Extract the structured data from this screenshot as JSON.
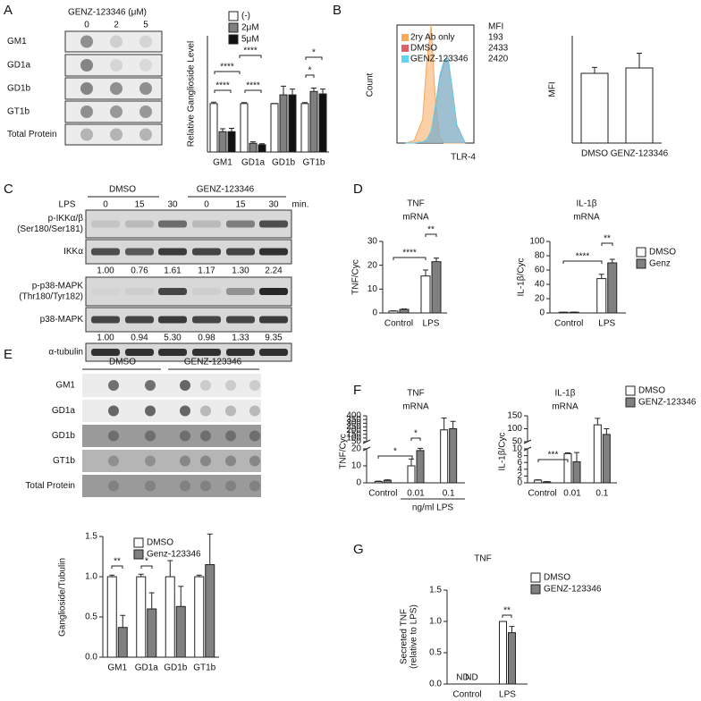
{
  "panel_labels": [
    "A",
    "B",
    "C",
    "D",
    "E",
    "F",
    "G"
  ],
  "blot_a": {
    "title": "GENZ-123346 (μM)",
    "columns": [
      "0",
      "2",
      "5"
    ],
    "rows": [
      "GM1",
      "GD1a",
      "GD1b",
      "GT1b",
      "Total Protein"
    ]
  },
  "blot_c": {
    "treatment_label": "LPS",
    "groups": [
      "DMSO",
      "GENZ-123346"
    ],
    "lanes": [
      "0",
      "15",
      "30",
      "0",
      "15",
      "30"
    ],
    "unit": "min.",
    "rows": [
      [
        "p-IKKα/β",
        "(Ser180/Ser181)"
      ],
      [
        "IKKα"
      ],
      [
        "p-p38-MAPK",
        "(Thr180/Tyr182)"
      ],
      [
        "p38-MAPK"
      ],
      [
        "α-tubulin"
      ]
    ],
    "quant": [
      [
        "1.00",
        "0.76",
        "1.61",
        "1.17",
        "1.30",
        "2.24"
      ],
      [
        "1.00",
        "0.94",
        "5.30",
        "0.98",
        "1.33",
        "9.35"
      ]
    ]
  },
  "blot_e": {
    "groups": [
      "DMSO",
      "GENZ-123346"
    ],
    "rows": [
      "GM1",
      "GD1a",
      "GD1b",
      "GT1b",
      "Total Protein"
    ]
  },
  "chart_data": [
    {
      "type": "bar",
      "ylabel": "Relative Ganglioside Level",
      "categories": [
        "GM1",
        "GD1a",
        "GD1b",
        "GT1b"
      ],
      "ylim": [
        0,
        2.4
      ],
      "series": [
        {
          "name": "(-)",
          "color": "#ffffff",
          "values": [
            1,
            1,
            1,
            1
          ],
          "errors": [
            0.03,
            0.02,
            0,
            0.02
          ]
        },
        {
          "name": "2μM",
          "color": "#808080",
          "values": [
            0.42,
            0.18,
            1.18,
            1.25
          ],
          "errors": [
            0.06,
            0.03,
            0.18,
            0.07
          ]
        },
        {
          "name": "5μM",
          "color": "#111111",
          "values": [
            0.42,
            0.15,
            1.18,
            1.2
          ],
          "errors": [
            0.07,
            0.02,
            0.12,
            0.1
          ]
        }
      ],
      "annotations": [
        "****",
        "****",
        "****",
        "****",
        "*",
        "*"
      ]
    },
    {
      "type": "area",
      "xlabel": "TLR-4",
      "ylabel": "Count",
      "mfi_label": "MFI",
      "xlim": [
        1,
        5.5
      ],
      "ylim": [
        0,
        100
      ],
      "x": [
        1.5,
        2,
        2.5,
        2.75,
        3,
        3.25,
        3.5,
        3.75,
        4,
        4.25,
        4.5,
        5
      ],
      "series": [
        {
          "name": "2ry Ab only",
          "color": "#f7a95c",
          "mfi": 193,
          "values": [
            0,
            2,
            20,
            70,
            100,
            35,
            5,
            0,
            0,
            0,
            0,
            0
          ]
        },
        {
          "name": "DMSO",
          "color": "#e0606a",
          "mfi": 2433,
          "values": [
            0,
            0,
            1,
            3,
            10,
            30,
            55,
            68,
            70,
            45,
            15,
            0
          ]
        },
        {
          "name": "GENZ-123346",
          "color": "#5fd3ef",
          "mfi": 2420,
          "values": [
            0,
            0,
            1,
            3,
            10,
            32,
            57,
            70,
            72,
            44,
            14,
            0
          ]
        }
      ]
    },
    {
      "type": "bar",
      "ylabel": "MFI",
      "categories": [
        "DMSO",
        "GENZ-123346"
      ],
      "ylim": [
        0,
        4000
      ],
      "series": [
        {
          "color": "#ffffff",
          "values": [
            2600,
            2800
          ],
          "errors": [
            220,
            550
          ]
        }
      ]
    },
    {
      "type": "bar",
      "title": "TNF",
      "subtitle": "mRNA",
      "ylabel": "TNF/Cyc",
      "categories": [
        "Control",
        "LPS"
      ],
      "ylim": [
        0,
        30
      ],
      "yticks": [
        0,
        10,
        20,
        30
      ],
      "series": [
        {
          "color": "#ffffff",
          "values": [
            0.8,
            15.5
          ],
          "errors": [
            0.1,
            2.5
          ]
        },
        {
          "color": "#808080",
          "values": [
            1.5,
            21.5
          ],
          "errors": [
            0.2,
            1.5
          ]
        }
      ],
      "annotations": [
        "****",
        "**"
      ]
    },
    {
      "type": "bar",
      "title": "IL-1β",
      "subtitle": "mRNA",
      "ylabel": "IL-1β/Cyc",
      "categories": [
        "Control",
        "LPS"
      ],
      "ylim": [
        0,
        100
      ],
      "yticks": [
        0,
        20,
        40,
        60,
        80,
        100
      ],
      "series": [
        {
          "name": "DMSO",
          "color": "#ffffff",
          "values": [
            1,
            48
          ],
          "errors": [
            0,
            6
          ]
        },
        {
          "name": "Genz",
          "color": "#808080",
          "values": [
            1,
            70
          ],
          "errors": [
            0.3,
            5
          ]
        }
      ],
      "annotations": [
        "****",
        "**"
      ]
    },
    {
      "type": "bar",
      "ylabel": "Ganglioside/Tubulin",
      "categories": [
        "GM1",
        "GD1a",
        "GD1b",
        "GT1b"
      ],
      "ylim": [
        0,
        1.5
      ],
      "yticks": [
        {
          "value": 0,
          "label": "0.0"
        },
        0.5,
        {
          "value": 1,
          "label": "1.0"
        },
        1.5
      ],
      "series": [
        {
          "name": "DMSO",
          "color": "#ffffff",
          "values": [
            1,
            1,
            1,
            1
          ],
          "errors": [
            0.02,
            0.03,
            0.2,
            0.02
          ]
        },
        {
          "name": "Genz-123346",
          "color": "#808080",
          "values": [
            0.37,
            0.6,
            0.63,
            1.15
          ],
          "errors": [
            0.15,
            0.2,
            0.25,
            0.38
          ]
        }
      ],
      "annotations": [
        "**",
        "*"
      ]
    },
    {
      "type": "bar",
      "title": "TNF",
      "subtitle": "mRNA",
      "ylabel": "TNF/Cyc",
      "xlabel": "ng/ml LPS",
      "categories": [
        "Control",
        "0.01",
        "0.1"
      ],
      "ylim": [
        0,
        400
      ],
      "ybreak": [
        20,
        50
      ],
      "yticks": [
        0,
        10,
        20,
        50,
        100,
        150,
        200,
        250,
        300,
        350,
        400
      ],
      "series": [
        {
          "color": "#ffffff",
          "values": [
            0.8,
            10,
            210
          ],
          "errors": [
            0.2,
            4,
            160
          ]
        },
        {
          "color": "#808080",
          "values": [
            1.5,
            19,
            225
          ],
          "errors": [
            0.3,
            3.5,
            100
          ]
        }
      ],
      "annotations": [
        "*",
        "*"
      ]
    },
    {
      "type": "bar",
      "title": "IL-1β",
      "subtitle": "mRNA",
      "ylabel": "IL-1β/Cyc",
      "categories": [
        "Control",
        "0.01",
        "0.1"
      ],
      "ylim": [
        0,
        150
      ],
      "ybreak": [
        10,
        50
      ],
      "yticks": [
        0,
        2,
        4,
        6,
        8,
        10,
        50,
        100,
        150
      ],
      "series": [
        {
          "name": "DMSO",
          "color": "#ffffff",
          "values": [
            0.8,
            8.6,
            115
          ],
          "errors": [
            0.1,
            0.2,
            25
          ]
        },
        {
          "name": "GENZ-123346",
          "color": "#808080",
          "values": [
            0.3,
            6.2,
            78
          ],
          "errors": [
            0.05,
            2.7,
            22
          ]
        }
      ],
      "annotations": [
        "***"
      ]
    },
    {
      "type": "bar",
      "title": "TNF",
      "ylabel": [
        "Secreted TNF",
        "(relative to LPS)"
      ],
      "categories": [
        "Control",
        "LPS"
      ],
      "ylim": [
        0,
        1.5
      ],
      "yticks": [
        {
          "value": 0,
          "label": "0.0"
        },
        0.5,
        {
          "value": 1,
          "label": "1.0"
        },
        1.5
      ],
      "series": [
        {
          "name": "DMSO",
          "color": "#ffffff",
          "values": [
            null,
            1
          ],
          "value_labels": [
            "ND",
            null
          ],
          "errors": [
            null,
            0
          ]
        },
        {
          "name": "GENZ-123346",
          "color": "#808080",
          "values": [
            null,
            0.82
          ],
          "value_labels": [
            "ND",
            null
          ],
          "errors": [
            null,
            0.1
          ]
        }
      ],
      "annotations": [
        "**"
      ]
    }
  ]
}
